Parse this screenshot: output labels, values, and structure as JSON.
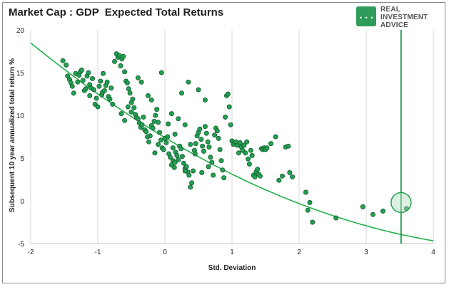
{
  "title": "Market Cap : GDP  Expected Total Returns",
  "logo": {
    "line1": "REAL",
    "line2": "INVESTMENT",
    "line3": "ADVICE",
    "icon": "chat-bubble-icon"
  },
  "colors": {
    "point_fill": "#22a052",
    "point_stroke": "#145a2e",
    "curve": "#22b14c",
    "marker_line": "#169c45",
    "grid": "#d9d9d9",
    "axis": "#bfbfbf"
  },
  "chart_data": {
    "type": "scatter",
    "title": "Market Cap : GDP  Expected Total Returns",
    "xlabel": "Std. Deviation",
    "ylabel": "Subsequent 10 year annualized total return %",
    "xlim": [
      -2,
      4
    ],
    "ylim": [
      -5,
      20
    ],
    "xticks": [
      -2,
      -1,
      0,
      1,
      2,
      3,
      4
    ],
    "yticks": [
      -5,
      0,
      5,
      10,
      15,
      20
    ],
    "grid": "vertical",
    "trendline": {
      "type": "polynomial",
      "coefficients": [
        7.4,
        -4.7,
        0.42
      ]
    },
    "current_marker": {
      "x": 3.52,
      "y": -0.2
    },
    "points": [
      [
        -1.52,
        16.4
      ],
      [
        -1.47,
        15.9
      ],
      [
        -1.45,
        14.6
      ],
      [
        -1.42,
        14.2
      ],
      [
        -1.4,
        13.8
      ],
      [
        -1.38,
        13.4
      ],
      [
        -1.36,
        12.6
      ],
      [
        -1.33,
        14.9
      ],
      [
        -1.3,
        13.9
      ],
      [
        -1.28,
        14.7
      ],
      [
        -1.26,
        15.1
      ],
      [
        -1.24,
        15.3
      ],
      [
        -1.22,
        14.1
      ],
      [
        -1.2,
        12.9
      ],
      [
        -1.18,
        13.1
      ],
      [
        -1.16,
        14.6
      ],
      [
        -1.14,
        15.0
      ],
      [
        -1.12,
        13.6
      ],
      [
        -1.1,
        13.2
      ],
      [
        -1.08,
        14.3
      ],
      [
        -1.06,
        13.0
      ],
      [
        -1.04,
        11.3
      ],
      [
        -1.02,
        12.0
      ],
      [
        -1.0,
        11.0
      ],
      [
        -0.98,
        13.4
      ],
      [
        -0.96,
        14.0
      ],
      [
        -0.94,
        12.4
      ],
      [
        -0.93,
        12.7
      ],
      [
        -0.92,
        14.9
      ],
      [
        -0.9,
        12.9
      ],
      [
        -0.88,
        13.5
      ],
      [
        -0.86,
        13.9
      ],
      [
        -0.84,
        12.2
      ],
      [
        -0.82,
        11.9
      ],
      [
        -0.8,
        13.2
      ],
      [
        -0.78,
        11.3
      ],
      [
        -0.75,
        16.3
      ],
      [
        -0.72,
        17.2
      ],
      [
        -0.7,
        16.8
      ],
      [
        -0.68,
        17.0
      ],
      [
        -0.66,
        15.8
      ],
      [
        -0.64,
        16.6
      ],
      [
        -0.62,
        16.9
      ],
      [
        -0.6,
        15.1
      ],
      [
        -0.58,
        14.0
      ],
      [
        -0.56,
        13.8
      ],
      [
        -0.54,
        13.1
      ],
      [
        -0.52,
        12.6
      ],
      [
        -0.5,
        11.5
      ],
      [
        -0.48,
        11.9
      ],
      [
        -0.46,
        10.9
      ],
      [
        -0.44,
        10.1
      ],
      [
        -0.42,
        9.7
      ],
      [
        -0.4,
        9.6
      ],
      [
        -0.38,
        9.1
      ],
      [
        -0.36,
        8.6
      ],
      [
        -0.34,
        8.9
      ],
      [
        -0.32,
        9.8
      ],
      [
        -0.3,
        8.3
      ],
      [
        -0.28,
        8.1
      ],
      [
        -0.26,
        7.5
      ],
      [
        -0.24,
        6.9
      ],
      [
        -0.22,
        7.6
      ],
      [
        -0.2,
        8.8
      ],
      [
        -0.18,
        8.5
      ],
      [
        -0.16,
        9.3
      ],
      [
        -0.14,
        10.0
      ],
      [
        -0.12,
        10.7
      ],
      [
        -0.1,
        9.2
      ],
      [
        -0.08,
        8.0
      ],
      [
        -0.06,
        7.1
      ],
      [
        -0.04,
        6.2
      ],
      [
        -0.02,
        6.0
      ],
      [
        0.0,
        7.3
      ],
      [
        0.02,
        6.8
      ],
      [
        0.04,
        7.5
      ],
      [
        0.06,
        5.5
      ],
      [
        0.08,
        5.1
      ],
      [
        0.1,
        4.2
      ],
      [
        0.12,
        4.7
      ],
      [
        0.14,
        3.9
      ],
      [
        0.16,
        5.7
      ],
      [
        0.18,
        5.3
      ],
      [
        0.2,
        4.8
      ],
      [
        0.22,
        6.4
      ],
      [
        0.24,
        6.1
      ],
      [
        0.26,
        5.2
      ],
      [
        0.28,
        4.4
      ],
      [
        0.3,
        3.8
      ],
      [
        0.32,
        4.0
      ],
      [
        0.34,
        3.4
      ],
      [
        0.36,
        3.0
      ],
      [
        0.38,
        1.6
      ],
      [
        0.4,
        2.1
      ],
      [
        0.42,
        3.5
      ],
      [
        0.44,
        5.9
      ],
      [
        0.46,
        6.7
      ],
      [
        0.48,
        7.6
      ],
      [
        0.5,
        8.0
      ],
      [
        0.52,
        8.4
      ],
      [
        0.54,
        7.2
      ],
      [
        0.56,
        6.4
      ],
      [
        0.58,
        5.8
      ],
      [
        0.6,
        8.7
      ],
      [
        0.62,
        7.9
      ],
      [
        0.64,
        6.9
      ],
      [
        0.66,
        6.3
      ],
      [
        0.68,
        5.1
      ],
      [
        0.7,
        4.5
      ],
      [
        0.72,
        3.0
      ],
      [
        0.74,
        7.7
      ],
      [
        0.76,
        8.5
      ],
      [
        0.78,
        8.2
      ],
      [
        0.8,
        7.3
      ],
      [
        0.82,
        6.0
      ],
      [
        0.84,
        4.7
      ],
      [
        0.86,
        3.6
      ],
      [
        0.88,
        2.7
      ],
      [
        0.9,
        9.8
      ],
      [
        0.92,
        12.3
      ],
      [
        0.94,
        12.5
      ],
      [
        0.96,
        11.0
      ],
      [
        0.98,
        8.9
      ],
      [
        1.0,
        7.0
      ],
      [
        1.02,
        6.6
      ],
      [
        1.04,
        6.8
      ],
      [
        1.06,
        6.9
      ],
      [
        1.08,
        6.5
      ],
      [
        1.1,
        5.6
      ],
      [
        1.12,
        6.8
      ],
      [
        1.14,
        6.3
      ],
      [
        1.16,
        5.9
      ],
      [
        1.18,
        6.5
      ],
      [
        1.2,
        5.6
      ],
      [
        1.22,
        6.9
      ],
      [
        1.24,
        4.9
      ],
      [
        1.26,
        4.3
      ],
      [
        1.28,
        5.9
      ],
      [
        1.3,
        5.3
      ],
      [
        1.32,
        3.0
      ],
      [
        1.34,
        2.8
      ],
      [
        1.36,
        3.4
      ],
      [
        1.38,
        3.7
      ],
      [
        1.4,
        3.1
      ],
      [
        1.42,
        2.9
      ],
      [
        1.44,
        6.1
      ],
      [
        1.46,
        6.0
      ],
      [
        1.48,
        6.2
      ],
      [
        1.5,
        6.0
      ],
      [
        1.52,
        6.2
      ],
      [
        1.58,
        6.7
      ],
      [
        1.65,
        7.5
      ],
      [
        1.7,
        2.4
      ],
      [
        1.75,
        2.9
      ],
      [
        1.8,
        6.3
      ],
      [
        1.84,
        6.4
      ],
      [
        1.86,
        3.3
      ],
      [
        1.9,
        2.8
      ],
      [
        2.1,
        1.0
      ],
      [
        2.13,
        -1.1
      ],
      [
        2.16,
        -0.2
      ],
      [
        2.2,
        -2.5
      ],
      [
        2.55,
        -2.0
      ],
      [
        2.95,
        -0.7
      ],
      [
        3.1,
        -1.6
      ],
      [
        3.25,
        -1.2
      ],
      [
        3.6,
        -0.9
      ],
      [
        -0.35,
        13.9
      ],
      [
        -0.4,
        14.4
      ],
      [
        -0.25,
        12.3
      ],
      [
        -0.2,
        11.8
      ],
      [
        -0.55,
        11.0
      ],
      [
        -0.65,
        10.2
      ],
      [
        0.1,
        10.2
      ],
      [
        0.2,
        9.6
      ],
      [
        0.3,
        8.9
      ],
      [
        0.25,
        12.6
      ],
      [
        0.5,
        13.0
      ],
      [
        0.6,
        11.8
      ],
      [
        0.35,
        13.9
      ],
      [
        -0.05,
        15.0
      ],
      [
        -0.5,
        10.4
      ],
      [
        -0.6,
        9.4
      ],
      [
        0.05,
        9.0
      ],
      [
        0.15,
        7.8
      ],
      [
        0.38,
        6.6
      ],
      [
        0.45,
        5.5
      ],
      [
        0.55,
        3.3
      ],
      [
        0.15,
        4.5
      ],
      [
        0.3,
        3.5
      ],
      [
        0.12,
        6.2
      ],
      [
        -0.15,
        5.6
      ],
      [
        -0.1,
        6.6
      ],
      [
        0.65,
        4.0
      ],
      [
        -1.12,
        12.3
      ]
    ]
  }
}
